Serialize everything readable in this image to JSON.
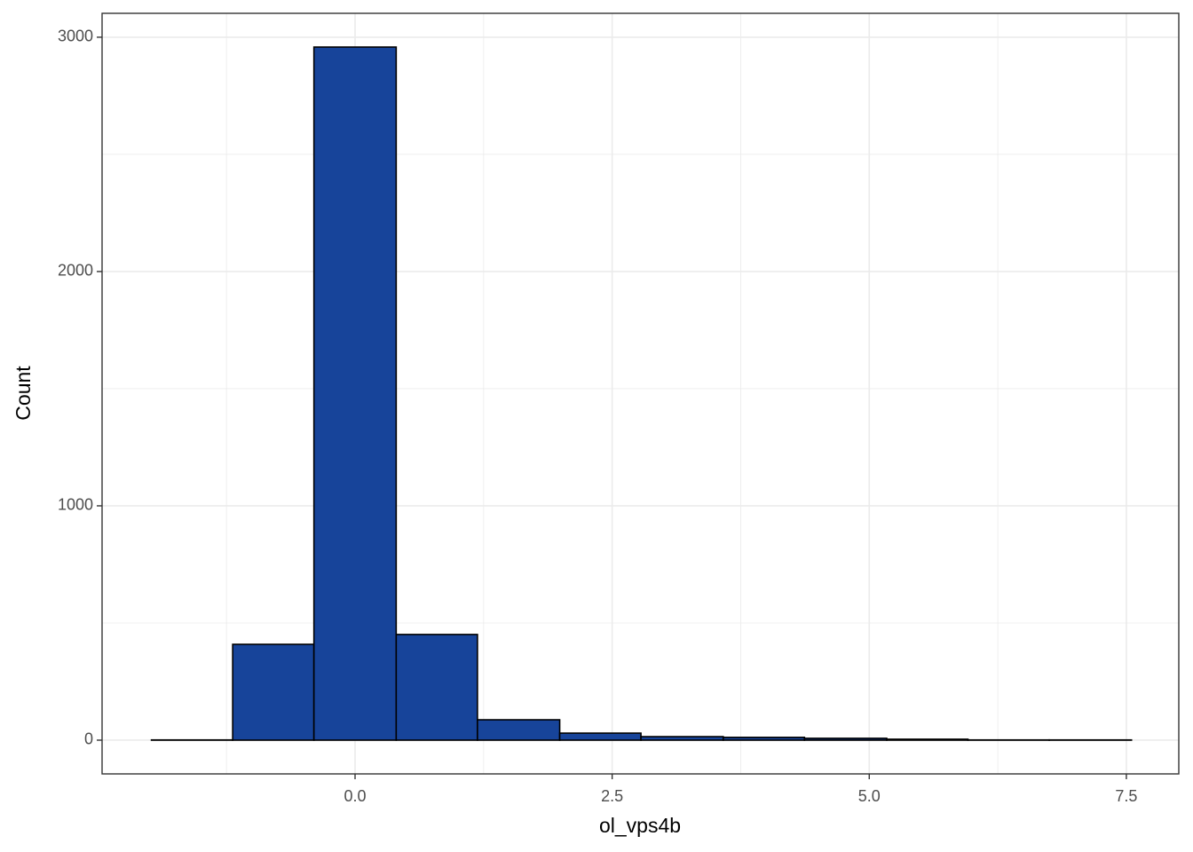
{
  "chart_data": {
    "type": "histogram",
    "x_label": "ol_vps4b",
    "y_label": "Count",
    "bins": [
      -1.98,
      -1.19,
      -0.4,
      0.4,
      1.19,
      1.99,
      2.78,
      3.58,
      4.37,
      5.17,
      5.96,
      6.75,
      7.55
    ],
    "counts": [
      1,
      409,
      2958,
      451,
      87,
      30,
      15,
      12,
      8,
      4,
      1,
      1
    ],
    "color": "#17449a",
    "edge_color": "#000000",
    "xlim": [
      -2.46,
      8.01
    ],
    "ylim": [
      -144,
      3102
    ],
    "xticks": [
      {
        "value": 0,
        "label": "0.0"
      },
      2.5,
      {
        "value": 5,
        "label": "5.0"
      },
      7.5
    ],
    "yticks": [
      0,
      1000,
      2000,
      3000
    ],
    "x_minor_grid": [
      -1.25,
      1.25,
      3.75,
      6.25
    ],
    "y_minor_grid": [
      500,
      1500,
      2500
    ],
    "grid": true
  }
}
